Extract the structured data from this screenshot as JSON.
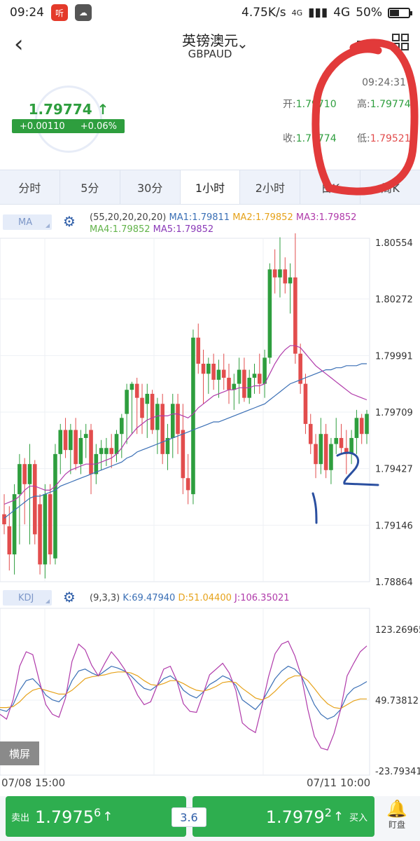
{
  "status_bar": {
    "time": "09:24",
    "app_icon_1": "听",
    "net_speed": "4.75K/s",
    "network": "4G",
    "signal": "4G",
    "battery": "50%",
    "battery_level": 0.5
  },
  "header": {
    "title": "英镑澳元",
    "subtitle": "GBPAUD"
  },
  "quote": {
    "price": "1.79774",
    "change": "+0.00110",
    "change_pct": "+0.06%",
    "time": "09:24:31",
    "open_label": "开:",
    "open_value": "1.79710",
    "high_label": "高:",
    "high_value": "1.79774",
    "close_label": "收:",
    "close_value": "1.79774",
    "low_label": "低:",
    "low_value": "1.79521"
  },
  "tabs": [
    "分时",
    "5分",
    "30分",
    "1小时",
    "2小时",
    "日K",
    "周K"
  ],
  "ma_indicator": {
    "tag": "MA",
    "params": "(55,20,20,20,20)",
    "ma1": "MA1:1.79811",
    "ma2": "MA2:1.79852",
    "ma3": "MA3:1.79852",
    "ma4": "MA4:1.79852",
    "ma5": "MA5:1.79852"
  },
  "kdj_indicator": {
    "tag": "KDJ",
    "params": "(9,3,3)",
    "k": "K:69.47940",
    "d": "D:51.04400",
    "j": "J:106.35021"
  },
  "colors": {
    "up": "#2e9e3e",
    "down": "#e24d4d",
    "ma1": "#3a6fb5",
    "ma2": "#e6a21a",
    "ma3": "#b03aaa",
    "ma4": "#62b34a",
    "ma5": "#8a3ab8"
  },
  "chart_data": [
    {
      "type": "candlestick",
      "y_ticks": [
        "1.80554",
        "1.80272",
        "1.79991",
        "1.79709",
        "1.79427",
        "1.79146",
        "1.78864"
      ],
      "ylim": [
        1.78864,
        1.80554
      ],
      "candles": [
        {
          "o": 1.792,
          "h": 1.793,
          "l": 1.791,
          "c": 1.7915
        },
        {
          "o": 1.7914,
          "h": 1.7924,
          "l": 1.7892,
          "c": 1.79
        },
        {
          "o": 1.79,
          "h": 1.7935,
          "l": 1.789,
          "c": 1.793
        },
        {
          "o": 1.793,
          "h": 1.795,
          "l": 1.7905,
          "c": 1.7945
        },
        {
          "o": 1.7945,
          "h": 1.7948,
          "l": 1.7915,
          "c": 1.7935
        },
        {
          "o": 1.7935,
          "h": 1.7955,
          "l": 1.7905,
          "c": 1.7945
        },
        {
          "o": 1.7945,
          "h": 1.7947,
          "l": 1.7905,
          "c": 1.791
        },
        {
          "o": 1.7925,
          "h": 1.793,
          "l": 1.789,
          "c": 1.7895
        },
        {
          "o": 1.7895,
          "h": 1.7935,
          "l": 1.7888,
          "c": 1.793
        },
        {
          "o": 1.793,
          "h": 1.7935,
          "l": 1.7895,
          "c": 1.79
        },
        {
          "o": 1.7898,
          "h": 1.7955,
          "l": 1.7895,
          "c": 1.795
        },
        {
          "o": 1.795,
          "h": 1.7965,
          "l": 1.794,
          "c": 1.7962
        },
        {
          "o": 1.7962,
          "h": 1.7968,
          "l": 1.7948,
          "c": 1.7952
        },
        {
          "o": 1.7952,
          "h": 1.7965,
          "l": 1.794,
          "c": 1.7962
        },
        {
          "o": 1.7962,
          "h": 1.7968,
          "l": 1.7942,
          "c": 1.7945
        },
        {
          "o": 1.7945,
          "h": 1.7962,
          "l": 1.794,
          "c": 1.7958
        },
        {
          "o": 1.7958,
          "h": 1.7965,
          "l": 1.7948,
          "c": 1.796
        },
        {
          "o": 1.7962,
          "h": 1.7965,
          "l": 1.793,
          "c": 1.794
        },
        {
          "o": 1.794,
          "h": 1.7955,
          "l": 1.7935,
          "c": 1.795
        },
        {
          "o": 1.795,
          "h": 1.7957,
          "l": 1.7942,
          "c": 1.7953
        },
        {
          "o": 1.795,
          "h": 1.7958,
          "l": 1.7944,
          "c": 1.7953
        },
        {
          "o": 1.7953,
          "h": 1.796,
          "l": 1.7943,
          "c": 1.795
        },
        {
          "o": 1.795,
          "h": 1.7962,
          "l": 1.7946,
          "c": 1.796
        },
        {
          "o": 1.796,
          "h": 1.797,
          "l": 1.7948,
          "c": 1.7968
        },
        {
          "o": 1.797,
          "h": 1.7985,
          "l": 1.7955,
          "c": 1.7982
        },
        {
          "o": 1.7982,
          "h": 1.7986,
          "l": 1.796,
          "c": 1.7985
        },
        {
          "o": 1.7985,
          "h": 1.7988,
          "l": 1.796,
          "c": 1.7978
        },
        {
          "o": 1.7978,
          "h": 1.7985,
          "l": 1.796,
          "c": 1.7968
        },
        {
          "o": 1.7975,
          "h": 1.7985,
          "l": 1.7958,
          "c": 1.798
        },
        {
          "o": 1.798,
          "h": 1.7982,
          "l": 1.796,
          "c": 1.7962
        },
        {
          "o": 1.7962,
          "h": 1.7978,
          "l": 1.795,
          "c": 1.7975
        },
        {
          "o": 1.7975,
          "h": 1.798,
          "l": 1.7945,
          "c": 1.795
        },
        {
          "o": 1.795,
          "h": 1.7965,
          "l": 1.7942,
          "c": 1.7958
        },
        {
          "o": 1.7958,
          "h": 1.798,
          "l": 1.7948,
          "c": 1.7975
        },
        {
          "o": 1.7975,
          "h": 1.798,
          "l": 1.795,
          "c": 1.796
        },
        {
          "o": 1.7962,
          "h": 1.7975,
          "l": 1.793,
          "c": 1.7938
        },
        {
          "o": 1.7938,
          "h": 1.795,
          "l": 1.7925,
          "c": 1.7932
        },
        {
          "o": 1.793,
          "h": 1.8012,
          "l": 1.7925,
          "c": 1.8008
        },
        {
          "o": 1.8008,
          "h": 1.8015,
          "l": 1.799,
          "c": 1.7995
        },
        {
          "o": 1.7995,
          "h": 1.8002,
          "l": 1.7975,
          "c": 1.799
        },
        {
          "o": 1.799,
          "h": 1.7998,
          "l": 1.798,
          "c": 1.7995
        },
        {
          "o": 1.7995,
          "h": 1.8,
          "l": 1.7982,
          "c": 1.7987
        },
        {
          "o": 1.7987,
          "h": 1.7997,
          "l": 1.7978,
          "c": 1.7992
        },
        {
          "o": 1.7992,
          "h": 1.8,
          "l": 1.7982,
          "c": 1.7988
        },
        {
          "o": 1.7988,
          "h": 1.7995,
          "l": 1.7975,
          "c": 1.7982
        },
        {
          "o": 1.7982,
          "h": 1.799,
          "l": 1.7972,
          "c": 1.7985
        },
        {
          "o": 1.7985,
          "h": 1.7998,
          "l": 1.7975,
          "c": 1.7992
        },
        {
          "o": 1.7992,
          "h": 1.7998,
          "l": 1.7976,
          "c": 1.7978
        },
        {
          "o": 1.7978,
          "h": 1.7992,
          "l": 1.7975,
          "c": 1.7988
        },
        {
          "o": 1.7988,
          "h": 1.7995,
          "l": 1.798,
          "c": 1.799
        },
        {
          "o": 1.799,
          "h": 1.8,
          "l": 1.798,
          "c": 1.7985
        },
        {
          "o": 1.7985,
          "h": 1.8002,
          "l": 1.7978,
          "c": 1.7998
        },
        {
          "o": 1.7998,
          "h": 1.8045,
          "l": 1.7995,
          "c": 1.8042
        },
        {
          "o": 1.8042,
          "h": 1.8052,
          "l": 1.803,
          "c": 1.8038
        },
        {
          "o": 1.8038,
          "h": 1.8058,
          "l": 1.8028,
          "c": 1.8042
        },
        {
          "o": 1.8042,
          "h": 1.8048,
          "l": 1.803,
          "c": 1.8035
        },
        {
          "o": 1.8035,
          "h": 1.8045,
          "l": 1.802,
          "c": 1.8038
        },
        {
          "o": 1.8038,
          "h": 1.806,
          "l": 1.7995,
          "c": 1.8
        },
        {
          "o": 1.8,
          "h": 1.8005,
          "l": 1.798,
          "c": 1.7985
        },
        {
          "o": 1.7985,
          "h": 1.799,
          "l": 1.796,
          "c": 1.7965
        },
        {
          "o": 1.7965,
          "h": 1.797,
          "l": 1.795,
          "c": 1.7955
        },
        {
          "o": 1.7955,
          "h": 1.796,
          "l": 1.7938,
          "c": 1.7945
        },
        {
          "o": 1.7945,
          "h": 1.7968,
          "l": 1.794,
          "c": 1.796
        },
        {
          "o": 1.796,
          "h": 1.7965,
          "l": 1.7938,
          "c": 1.7942
        },
        {
          "o": 1.7942,
          "h": 1.7958,
          "l": 1.7935,
          "c": 1.7955
        },
        {
          "o": 1.7955,
          "h": 1.7968,
          "l": 1.795,
          "c": 1.7958
        },
        {
          "o": 1.7958,
          "h": 1.7965,
          "l": 1.795,
          "c": 1.7953
        },
        {
          "o": 1.7953,
          "h": 1.7962,
          "l": 1.794,
          "c": 1.795
        },
        {
          "o": 1.795,
          "h": 1.7962,
          "l": 1.7945,
          "c": 1.7958
        },
        {
          "o": 1.7958,
          "h": 1.7972,
          "l": 1.795,
          "c": 1.7968
        },
        {
          "o": 1.7968,
          "h": 1.797,
          "l": 1.7955,
          "c": 1.796
        },
        {
          "o": 1.796,
          "h": 1.7972,
          "l": 1.7955,
          "c": 1.797
        }
      ],
      "ma_slow": [
        1.7918,
        1.792,
        1.7922,
        1.7924,
        1.7926,
        1.7928,
        1.7929,
        1.7929,
        1.793,
        1.7931,
        1.7932,
        1.7934,
        1.7935,
        1.7936,
        1.7937,
        1.7938,
        1.7939,
        1.794,
        1.7941,
        1.7942,
        1.7943,
        1.7944,
        1.7945,
        1.7946,
        1.7948,
        1.7949,
        1.7951,
        1.7952,
        1.7953,
        1.7954,
        1.7955,
        1.7956,
        1.7957,
        1.7958,
        1.7959,
        1.796,
        1.7961,
        1.7962,
        1.7963,
        1.7964,
        1.7965,
        1.7966,
        1.7966,
        1.7967,
        1.7968,
        1.7969,
        1.797,
        1.7971,
        1.7972,
        1.7973,
        1.7974,
        1.7975,
        1.7977,
        1.7979,
        1.7981,
        1.7983,
        1.7985,
        1.7986,
        1.7987,
        1.7988,
        1.7989,
        1.799,
        1.7991,
        1.7992,
        1.7992,
        1.7993,
        1.7993,
        1.7994,
        1.7994,
        1.7994,
        1.7995,
        1.7995
      ],
      "ma_fast": [
        1.7925,
        1.7926,
        1.7927,
        1.7929,
        1.7932,
        1.7934,
        1.7934,
        1.7933,
        1.7932,
        1.7932,
        1.7934,
        1.7937,
        1.794,
        1.7942,
        1.7943,
        1.7944,
        1.7945,
        1.7945,
        1.7945,
        1.7946,
        1.7947,
        1.7948,
        1.795,
        1.7953,
        1.7957,
        1.796,
        1.7963,
        1.7965,
        1.7967,
        1.7968,
        1.7969,
        1.7969,
        1.7969,
        1.797,
        1.797,
        1.7969,
        1.7968,
        1.797,
        1.7973,
        1.7975,
        1.7977,
        1.7979,
        1.798,
        1.7981,
        1.7982,
        1.7982,
        1.7983,
        1.7983,
        1.7983,
        1.7984,
        1.7984,
        1.7985,
        1.799,
        1.7995,
        1.7999,
        1.8002,
        1.8004,
        1.8004,
        1.8003,
        1.8,
        1.7997,
        1.7994,
        1.7992,
        1.799,
        1.7988,
        1.7986,
        1.7984,
        1.7982,
        1.798,
        1.7979,
        1.7978,
        1.7977
      ]
    },
    {
      "type": "line",
      "y_ticks": [
        "123.26965",
        "49.73812",
        "-23.79341"
      ],
      "ylim": [
        -23.79341,
        123.26965
      ],
      "series": [
        {
          "name": "K",
          "values": [
            40,
            38,
            45,
            60,
            70,
            72,
            65,
            55,
            50,
            48,
            55,
            70,
            80,
            82,
            78,
            75,
            80,
            85,
            83,
            80,
            75,
            68,
            62,
            60,
            65,
            72,
            75,
            70,
            60,
            55,
            52,
            58,
            66,
            70,
            75,
            72,
            65,
            50,
            45,
            40,
            48,
            60,
            72,
            80,
            85,
            82,
            75,
            60,
            45,
            35,
            30,
            33,
            40,
            55,
            62,
            65,
            69
          ]
        },
        {
          "name": "D",
          "values": [
            42,
            42,
            43,
            48,
            55,
            60,
            62,
            60,
            58,
            56,
            56,
            60,
            66,
            72,
            74,
            75,
            76,
            78,
            79,
            79,
            78,
            75,
            70,
            66,
            65,
            67,
            70,
            70,
            67,
            63,
            60,
            59,
            61,
            64,
            68,
            69,
            68,
            62,
            57,
            52,
            50,
            53,
            59,
            66,
            72,
            75,
            75,
            70,
            62,
            53,
            46,
            42,
            41,
            45,
            49,
            51,
            51
          ]
        },
        {
          "name": "J",
          "values": [
            35,
            30,
            50,
            85,
            100,
            97,
            70,
            45,
            35,
            32,
            52,
            90,
            108,
            102,
            86,
            75,
            88,
            100,
            92,
            82,
            70,
            55,
            45,
            48,
            65,
            82,
            85,
            70,
            46,
            38,
            37,
            56,
            76,
            82,
            88,
            78,
            60,
            26,
            20,
            16,
            44,
            74,
            98,
            108,
            111,
            96,
            75,
            40,
            12,
            0,
            -2,
            15,
            40,
            75,
            88,
            100,
            106
          ]
        }
      ]
    }
  ],
  "x_labels": [
    "07/08 15:00",
    "07/11 10:00"
  ],
  "landscape_label": "横屏",
  "trade": {
    "sell_label": "卖出",
    "sell_price_main": "1.7975",
    "sell_price_sup": "6",
    "spread": "3.6",
    "buy_label": "买入",
    "buy_price_main": "1.7979",
    "buy_price_sup": "2",
    "watch_label": "盯盘"
  }
}
